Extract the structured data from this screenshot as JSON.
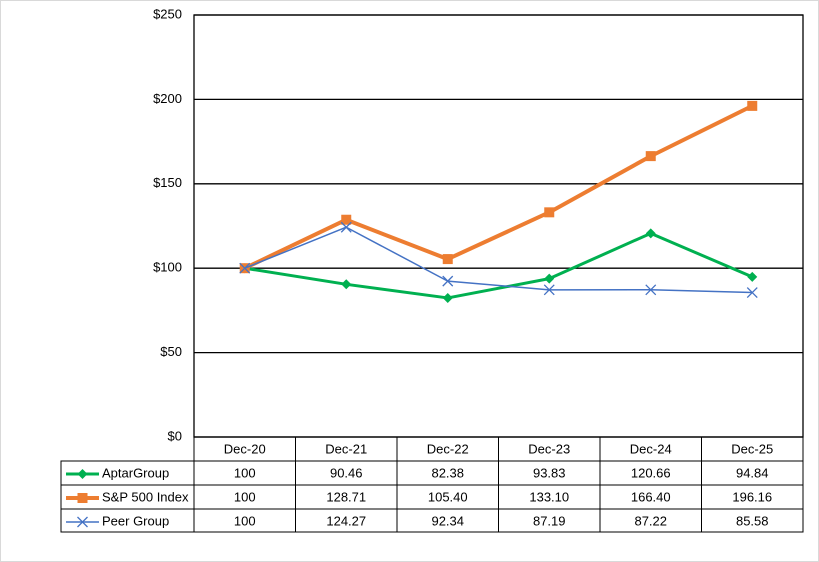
{
  "chart_data": {
    "type": "line",
    "categories": [
      "Dec-20",
      "Dec-21",
      "Dec-22",
      "Dec-23",
      "Dec-24",
      "Dec-25"
    ],
    "series": [
      {
        "name": "AptarGroup",
        "color": "#00b050",
        "marker": "diamond",
        "values": [
          100,
          90.46,
          82.38,
          93.83,
          120.66,
          94.84
        ],
        "value_labels": [
          "100",
          "90.46",
          "82.38",
          "93.83",
          "120.66",
          "94.84"
        ]
      },
      {
        "name": "S&P 500 Index",
        "color": "#ed7d31",
        "marker": "square",
        "values": [
          100,
          128.71,
          105.4,
          133.1,
          166.4,
          196.16
        ],
        "value_labels": [
          "100",
          "128.71",
          "105.40",
          "133.10",
          "166.40",
          "196.16"
        ]
      },
      {
        "name": "Peer Group",
        "color": "#4472c4",
        "marker": "x",
        "values": [
          100,
          124.27,
          92.34,
          87.19,
          87.22,
          85.58
        ],
        "value_labels": [
          "100",
          "124.27",
          "92.34",
          "87.19",
          "87.22",
          "85.58"
        ]
      }
    ],
    "ylim": [
      0,
      250
    ],
    "yticks": [
      {
        "value": 0,
        "label": "$0"
      },
      {
        "value": 50,
        "label": "$50"
      },
      {
        "value": 100,
        "label": "$100"
      },
      {
        "value": 150,
        "label": "$150"
      },
      {
        "value": 200,
        "label": "$200"
      },
      {
        "value": 250,
        "label": "$250"
      }
    ],
    "grid": true
  }
}
